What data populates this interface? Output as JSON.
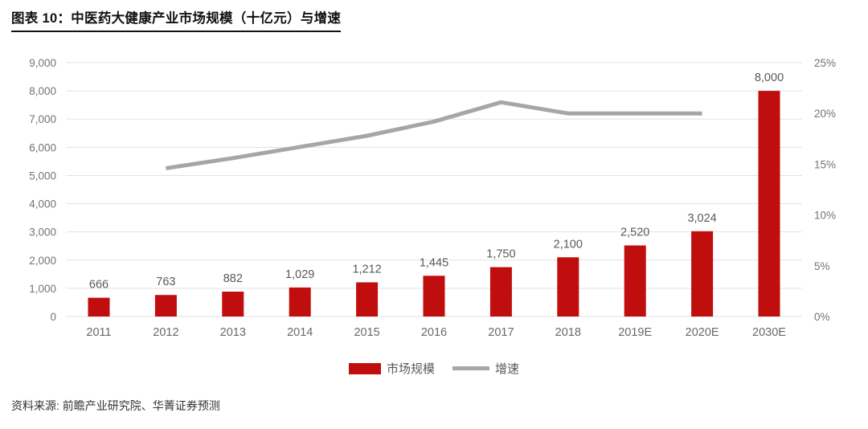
{
  "header": {
    "title": "图表 10：中医药大健康产业市场规模（十亿元）与增速"
  },
  "source": {
    "text": "资料来源: 前瞻产业研究院、华菁证券预测"
  },
  "colors": {
    "bar_red": "#c00d0d",
    "line_gray": "#a6a6a6",
    "gridline": "#e2e2e2",
    "axis_text": "#737373",
    "label_text": "#595959"
  },
  "chart_data": {
    "type": "bar",
    "title": "中医药大健康产业市场规模（十亿元）与增速",
    "categories": [
      "2011",
      "2012",
      "2013",
      "2014",
      "2015",
      "2016",
      "2017",
      "2018",
      "2019E",
      "2020E",
      "2030E"
    ],
    "series": [
      {
        "name": "市场规模",
        "type": "bar",
        "axis": "left",
        "color": "#c00d0d",
        "values": [
          666,
          763,
          882,
          1029,
          1212,
          1445,
          1750,
          2100,
          2520,
          3024,
          8000
        ],
        "labels": [
          "666",
          "763",
          "882",
          "1,029",
          "1,212",
          "1,445",
          "1,750",
          "2,100",
          "2,520",
          "3,024",
          "8,000"
        ]
      },
      {
        "name": "增速",
        "type": "line",
        "axis": "right",
        "color": "#a6a6a6",
        "values": [
          null,
          14.6,
          15.6,
          16.7,
          17.8,
          19.2,
          21.1,
          20.0,
          20.0,
          20.0,
          null
        ]
      }
    ],
    "left_axis": {
      "min": 0,
      "max": 9000,
      "step": 1000,
      "tick_labels": [
        "0",
        "1,000",
        "2,000",
        "3,000",
        "4,000",
        "5,000",
        "6,000",
        "7,000",
        "8,000",
        "9,000"
      ]
    },
    "right_axis": {
      "min": 0,
      "max": 25,
      "step": 5,
      "tick_labels": [
        "0%",
        "5%",
        "10%",
        "15%",
        "20%",
        "25%"
      ]
    },
    "grid": true,
    "legend_position": "bottom"
  }
}
